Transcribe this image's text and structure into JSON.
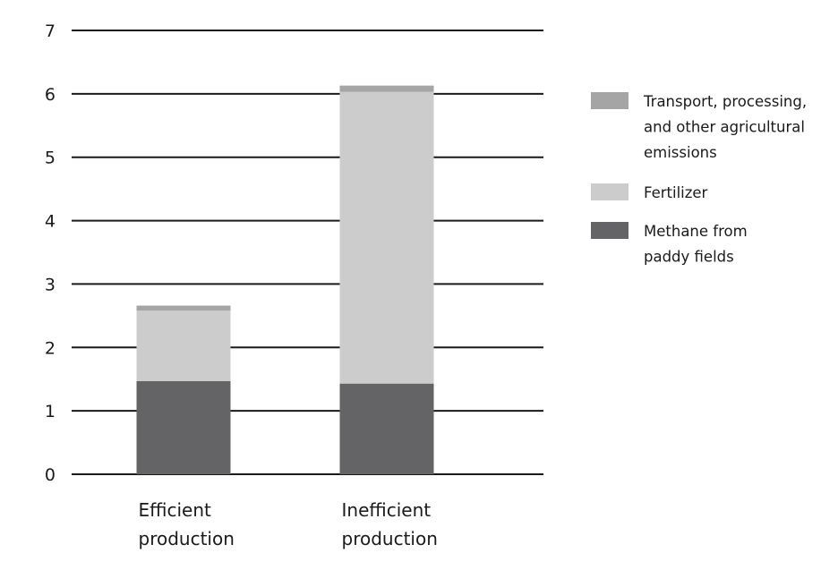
{
  "chart_data": {
    "type": "bar",
    "stacked": true,
    "categories": [
      [
        "Efficient",
        "production"
      ],
      [
        "Inefficient",
        "production"
      ]
    ],
    "series": [
      {
        "key": "methane",
        "name": [
          "Methane from",
          "paddy fields"
        ],
        "color": "#646466",
        "values": [
          1.47,
          1.43
        ]
      },
      {
        "key": "fertilizer",
        "name": [
          "Fertilizer"
        ],
        "color": "#cccccc",
        "values": [
          1.11,
          4.6
        ]
      },
      {
        "key": "transport",
        "name": [
          "Transport, processing,",
          "and other agricultural",
          "emissions"
        ],
        "color": "#a5a5a5",
        "values": [
          0.08,
          0.1
        ]
      }
    ],
    "legend_order": [
      "transport",
      "fertilizer",
      "methane"
    ],
    "yticks": [
      "0",
      "1",
      "2",
      "3",
      "4",
      "5",
      "6",
      "7"
    ],
    "ylim": [
      0,
      7
    ],
    "title": "",
    "xlabel": "",
    "ylabel": "",
    "grid": true,
    "legend_position": "right"
  }
}
